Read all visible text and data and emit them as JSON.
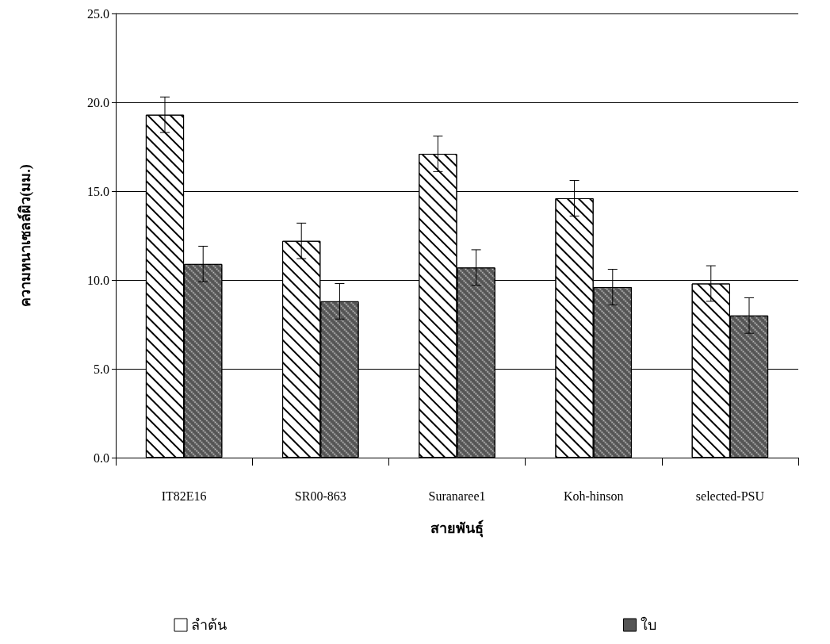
{
  "chart_data": {
    "type": "bar",
    "xlabel": "สายพันธุ์",
    "ylabel": "ความหนาเซลล์ผิว(มม.)",
    "categories": [
      "IT82E16",
      "SR00-863",
      "Suranaree1",
      "Koh-hinson",
      "selected-PSU"
    ],
    "series": [
      {
        "name": "ลำต้น",
        "color": "#ffffff",
        "values": [
          19.3,
          12.2,
          17.1,
          14.6,
          9.8
        ],
        "errors": [
          1.0,
          1.0,
          1.0,
          1.0,
          1.0
        ]
      },
      {
        "name": "ใบ",
        "color": "#555555",
        "values": [
          10.9,
          8.8,
          10.7,
          9.6,
          8.0
        ],
        "errors": [
          1.0,
          1.0,
          1.0,
          1.0,
          1.0
        ]
      }
    ],
    "ylim": [
      0,
      25
    ],
    "yticks": [
      {
        "value": 0,
        "label": "0.0"
      },
      {
        "value": 5,
        "label": "5.0"
      },
      {
        "value": 10,
        "label": "10.0"
      },
      {
        "value": 15,
        "label": "15.0"
      },
      {
        "value": 20,
        "label": "20.0"
      },
      {
        "value": 25,
        "label": "25.0"
      }
    ],
    "grid": "y",
    "legend": "bottom"
  }
}
